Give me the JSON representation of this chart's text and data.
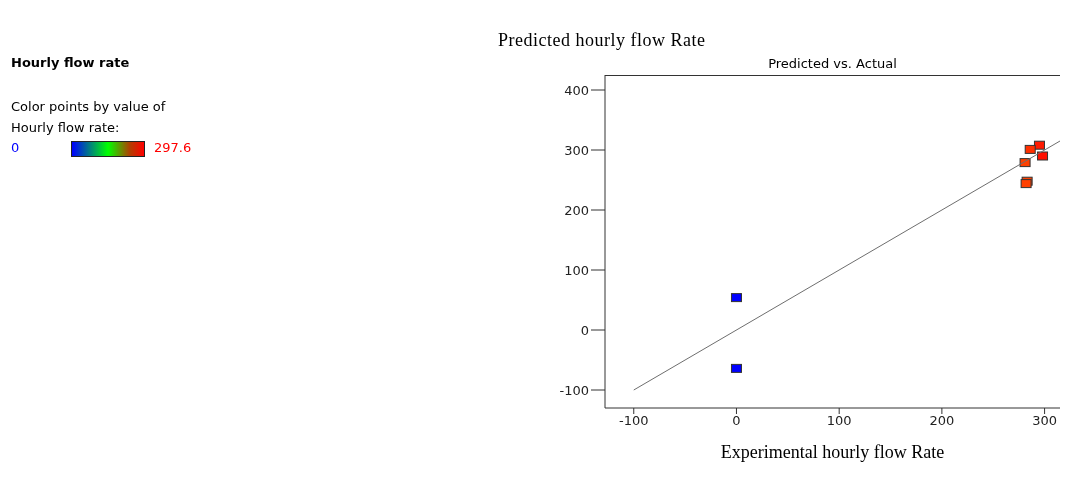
{
  "chart_data": {
    "type": "scatter",
    "title": "Predicted vs. Actual",
    "ylabel": "Predicted hourly flow Rate",
    "xlabel": "Experimental hourly flow Rate",
    "annotations": [
      "Hourly flow rate",
      "Color points by value of Hourly flow rate:",
      "0",
      "297.6"
    ],
    "series": [
      {
        "x": [
          0,
          0,
          295,
          286,
          298,
          281,
          283,
          282
        ],
        "values": [
          54,
          -64,
          308,
          301,
          290,
          279,
          248,
          244
        ],
        "marker": "square",
        "colors": [
          "#0000ff",
          "#0000ff",
          "#ff1a00",
          "#ff3000",
          "#ff1000",
          "#ff4000",
          "#ff4000",
          "#ff4000"
        ]
      },
      {
        "type": "line",
        "x": [
          -100,
          315
        ],
        "values": [
          -100,
          315
        ],
        "color": "#6e6e6e"
      }
    ],
    "xlim": [
      -128,
      315
    ],
    "ylim": [
      -130,
      425
    ],
    "xticks": [
      -100,
      0,
      100,
      200,
      300
    ],
    "yticks": [
      -100,
      0,
      100,
      200,
      300,
      400
    ],
    "grid": false
  }
}
